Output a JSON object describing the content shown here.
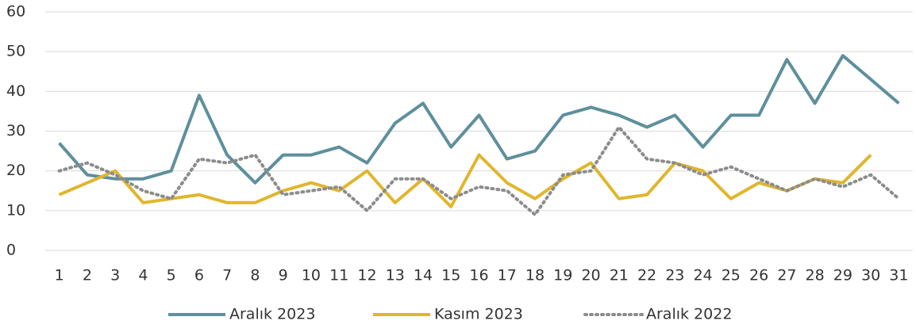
{
  "chart_data": {
    "type": "line",
    "categories": [
      "1",
      "2",
      "3",
      "4",
      "5",
      "6",
      "7",
      "8",
      "9",
      "10",
      "11",
      "12",
      "13",
      "14",
      "15",
      "16",
      "17",
      "18",
      "19",
      "20",
      "21",
      "22",
      "23",
      "24",
      "25",
      "26",
      "27",
      "28",
      "29",
      "30",
      "31"
    ],
    "series": [
      {
        "name": "Aralık 2023",
        "color": "#5e8f9c",
        "dash": "solid",
        "values": [
          27,
          19,
          18,
          18,
          20,
          39,
          24,
          17,
          24,
          24,
          26,
          22,
          32,
          37,
          26,
          34,
          23,
          25,
          34,
          36,
          34,
          31,
          34,
          26,
          34,
          34,
          48,
          37,
          49,
          43,
          37
        ]
      },
      {
        "name": "Kasım 2023",
        "color": "#e0b62e",
        "dash": "solid",
        "values": [
          14,
          17,
          20,
          12,
          13,
          14,
          12,
          12,
          15,
          17,
          15,
          20,
          12,
          18,
          11,
          24,
          17,
          13,
          18,
          22,
          13,
          14,
          22,
          20,
          13,
          17,
          15,
          18,
          17,
          24,
          null
        ]
      },
      {
        "name": "Aralık 2022",
        "color": "#8c8c8c",
        "dash": "dotted",
        "values": [
          20,
          22,
          19,
          15,
          13,
          23,
          22,
          24,
          14,
          15,
          16,
          10,
          18,
          18,
          13,
          16,
          15,
          9,
          19,
          20,
          31,
          23,
          22,
          19,
          21,
          18,
          15,
          18,
          16,
          19,
          13
        ]
      }
    ],
    "ylim": [
      0,
      60
    ],
    "yticks": [
      0,
      10,
      20,
      30,
      40,
      50,
      60
    ],
    "grid": true,
    "legend": "bottom"
  }
}
